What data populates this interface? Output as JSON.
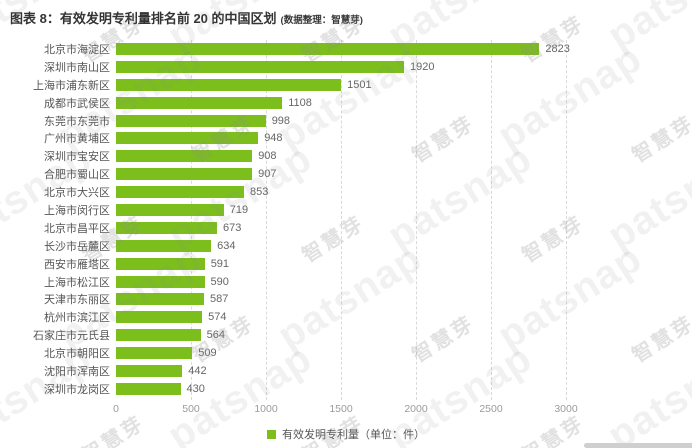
{
  "title": {
    "text": "图表 8：有效发明专利量排名前 20 的中国区划",
    "source_note": "(数据整理：智慧芽)"
  },
  "chart_data": {
    "type": "bar",
    "orientation": "horizontal",
    "title": "有效发明专利量排名前 20 的中国区划",
    "categories": [
      "北京市海淀区",
      "深圳市南山区",
      "上海市浦东新区",
      "成都市武侯区",
      "东莞市东莞市",
      "广州市黄埔区",
      "深圳市宝安区",
      "合肥市蜀山区",
      "北京市大兴区",
      "上海市闵行区",
      "北京市昌平区",
      "长沙市岳麓区",
      "西安市雁塔区",
      "上海市松江区",
      "天津市东丽区",
      "杭州市滨江区",
      "石家庄市元氏县",
      "北京市朝阳区",
      "沈阳市浑南区",
      "深圳市龙岗区"
    ],
    "values": [
      2823,
      1920,
      1501,
      1108,
      998,
      948,
      908,
      907,
      853,
      719,
      673,
      634,
      591,
      590,
      587,
      574,
      564,
      509,
      442,
      430
    ],
    "xlim": [
      0,
      3000
    ],
    "x_ticks": [
      "0",
      "500",
      "1000",
      "1500",
      "2000",
      "2500",
      "3000"
    ],
    "grid": "vertical-dashed",
    "value_labels": true,
    "legend": {
      "label": "有效发明专利量（单位：件）",
      "position": "bottom-center"
    }
  },
  "watermark": {
    "latin": "patsnap",
    "cjk": "智慧芽"
  },
  "colors": {
    "bar": "#7CBF1D",
    "title": "#333333",
    "category_label": "#555555",
    "value_label": "#666666",
    "tick_label": "#9b9b9b",
    "grid_line": "#d9d9d9"
  }
}
